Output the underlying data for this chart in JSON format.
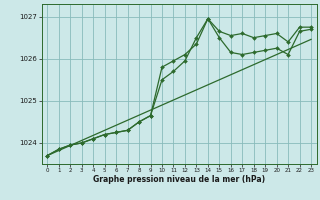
{
  "x": [
    0,
    1,
    2,
    3,
    4,
    5,
    6,
    7,
    8,
    9,
    10,
    11,
    12,
    13,
    14,
    15,
    16,
    17,
    18,
    19,
    20,
    21,
    22,
    23
  ],
  "series_main1": [
    1023.7,
    1023.85,
    1023.95,
    1024.0,
    1024.1,
    1024.2,
    1024.25,
    1024.3,
    1024.5,
    1024.65,
    1025.8,
    1025.95,
    1026.1,
    1026.35,
    1026.95,
    1026.5,
    1026.15,
    1026.1,
    1026.15,
    1026.2,
    1026.25,
    1026.1,
    1026.65,
    1026.7
  ],
  "series_main2": [
    1023.7,
    1023.85,
    1023.95,
    1024.0,
    1024.1,
    1024.2,
    1024.25,
    1024.3,
    1024.5,
    1024.65,
    1025.5,
    1025.7,
    1025.95,
    1026.5,
    1026.95,
    1026.65,
    1026.55,
    1026.6,
    1026.5,
    1026.55,
    1026.6,
    1026.4,
    1026.75,
    1026.75
  ],
  "series_trend": [
    1023.7,
    1023.82,
    1023.94,
    1024.06,
    1024.18,
    1024.3,
    1024.42,
    1024.54,
    1024.66,
    1024.78,
    1024.9,
    1025.02,
    1025.14,
    1025.26,
    1025.38,
    1025.5,
    1025.62,
    1025.74,
    1025.86,
    1025.98,
    1026.1,
    1026.22,
    1026.34,
    1026.46
  ],
  "line_color": "#2d6a2d",
  "bg_color": "#cce8e8",
  "grid_color": "#88bbbb",
  "xlabel": "Graphe pression niveau de la mer (hPa)",
  "ylim": [
    1023.5,
    1027.3
  ],
  "xlim": [
    -0.5,
    23.5
  ],
  "yticks": [
    1024,
    1025,
    1026,
    1027
  ],
  "xticks": [
    0,
    1,
    2,
    3,
    4,
    5,
    6,
    7,
    8,
    9,
    10,
    11,
    12,
    13,
    14,
    15,
    16,
    17,
    18,
    19,
    20,
    21,
    22,
    23
  ]
}
